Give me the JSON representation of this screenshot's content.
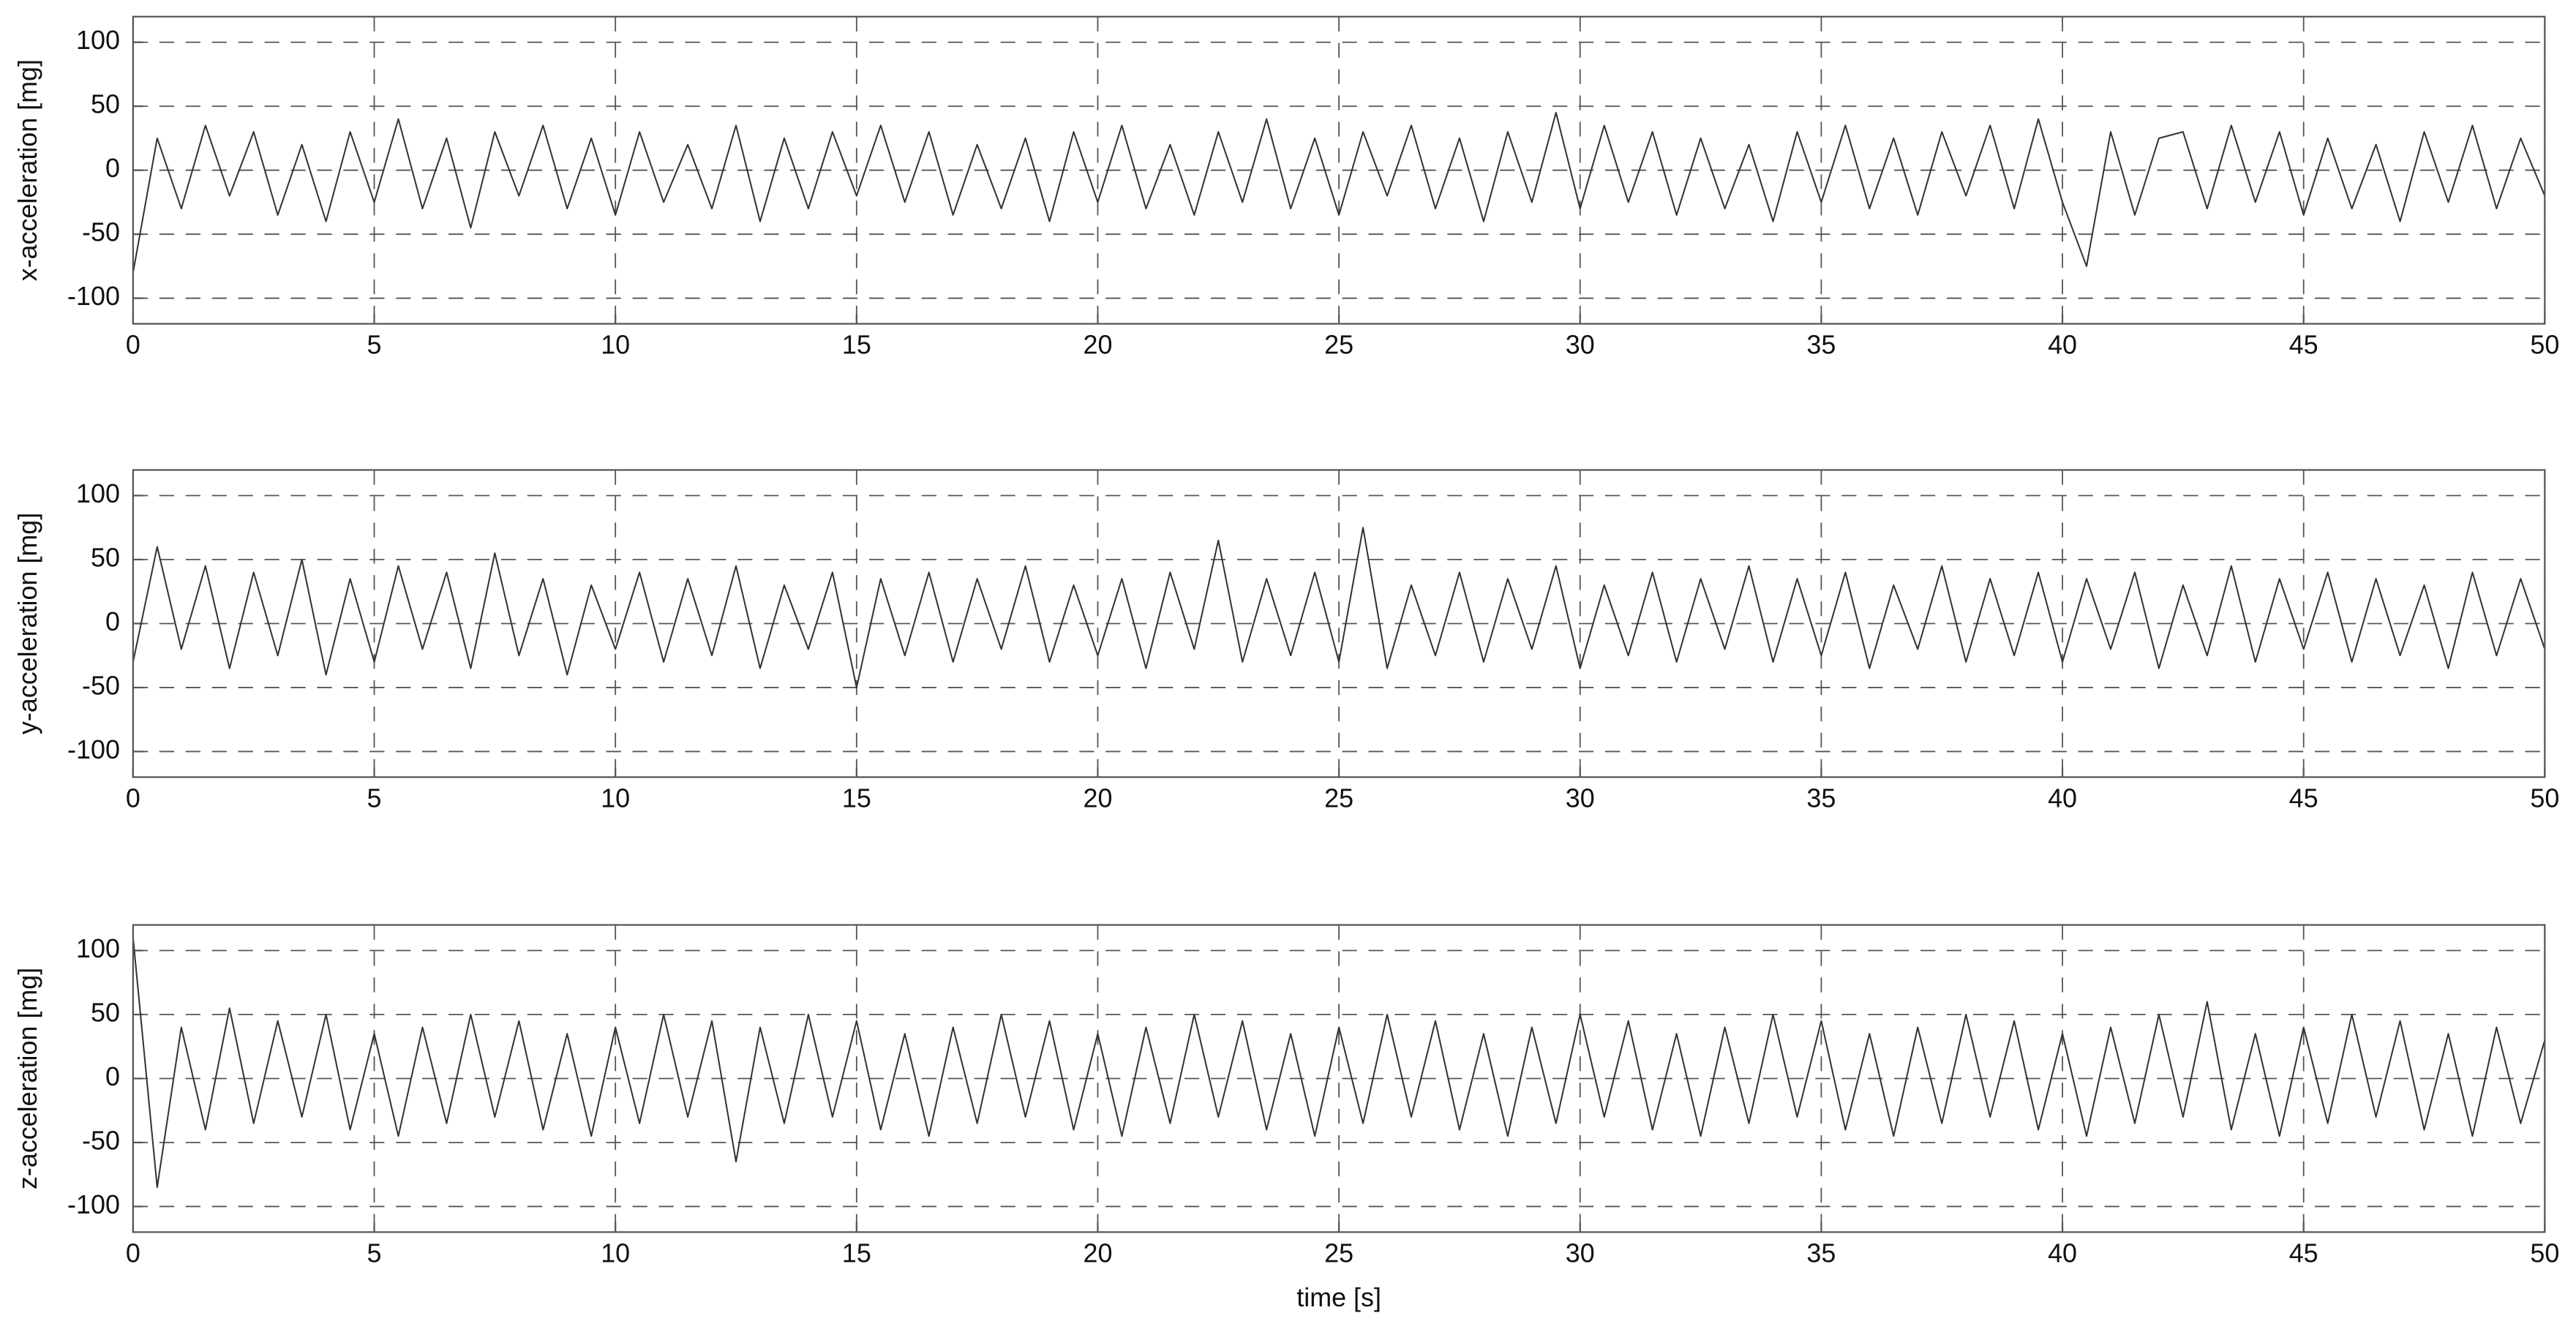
{
  "chart_data": [
    {
      "type": "line",
      "ylabel": "x-acceleration [mg]",
      "color": "#333333",
      "grid": true,
      "xlim": [
        0,
        50
      ],
      "xticks": [
        0,
        5,
        10,
        15,
        20,
        25,
        30,
        35,
        40,
        45,
        50
      ],
      "ylim": [
        -120,
        120
      ],
      "yticks": [
        -100,
        -50,
        0,
        50,
        100
      ],
      "x": [
        0,
        0.5,
        1,
        1.5,
        2,
        2.5,
        3,
        3.5,
        4,
        4.5,
        5,
        5.5,
        6,
        6.5,
        7,
        7.5,
        8,
        8.5,
        9,
        9.5,
        10,
        10.5,
        11,
        11.5,
        12,
        12.5,
        13,
        13.5,
        14,
        14.5,
        15,
        15.5,
        16,
        16.5,
        17,
        17.5,
        18,
        18.5,
        19,
        19.5,
        20,
        20.5,
        21,
        21.5,
        22,
        22.5,
        23,
        23.5,
        24,
        24.5,
        25,
        25.5,
        26,
        26.5,
        27,
        27.5,
        28,
        28.5,
        29,
        29.5,
        30,
        30.5,
        31,
        31.5,
        32,
        32.5,
        33,
        33.5,
        34,
        34.5,
        35,
        35.5,
        36,
        36.5,
        37,
        37.5,
        38,
        38.5,
        39,
        39.5,
        40,
        40.5,
        41,
        41.5,
        42,
        42.5,
        43,
        43.5,
        44,
        44.5,
        45,
        45.5,
        46,
        46.5,
        47,
        47.5,
        48,
        48.5,
        49,
        49.5,
        50
      ],
      "values": [
        -80,
        25,
        -30,
        35,
        -20,
        30,
        -35,
        20,
        -40,
        30,
        -25,
        40,
        -30,
        25,
        -45,
        30,
        -20,
        35,
        -30,
        25,
        -35,
        30,
        -25,
        20,
        -30,
        35,
        -40,
        25,
        -30,
        30,
        -20,
        35,
        -25,
        30,
        -35,
        20,
        -30,
        25,
        -40,
        30,
        -25,
        35,
        -30,
        20,
        -35,
        30,
        -25,
        40,
        -30,
        25,
        -35,
        30,
        -20,
        35,
        -30,
        25,
        -40,
        30,
        -25,
        45,
        -30,
        35,
        -25,
        30,
        -35,
        25,
        -30,
        20,
        -40,
        30,
        -25,
        35,
        -30,
        25,
        -35,
        30,
        -20,
        35,
        -30,
        40,
        -25,
        -75,
        30,
        -35,
        25,
        30,
        -30,
        35,
        -25,
        30,
        -35,
        25,
        -30,
        20,
        -40,
        30,
        -25,
        35,
        -30,
        25,
        -20
      ]
    },
    {
      "type": "line",
      "ylabel": "y-acceleration [mg]",
      "color": "#333333",
      "grid": true,
      "xlim": [
        0,
        50
      ],
      "xticks": [
        0,
        5,
        10,
        15,
        20,
        25,
        30,
        35,
        40,
        45,
        50
      ],
      "ylim": [
        -120,
        120
      ],
      "yticks": [
        -100,
        -50,
        0,
        50,
        100
      ],
      "x": [
        0,
        0.5,
        1,
        1.5,
        2,
        2.5,
        3,
        3.5,
        4,
        4.5,
        5,
        5.5,
        6,
        6.5,
        7,
        7.5,
        8,
        8.5,
        9,
        9.5,
        10,
        10.5,
        11,
        11.5,
        12,
        12.5,
        13,
        13.5,
        14,
        14.5,
        15,
        15.5,
        16,
        16.5,
        17,
        17.5,
        18,
        18.5,
        19,
        19.5,
        20,
        20.5,
        21,
        21.5,
        22,
        22.5,
        23,
        23.5,
        24,
        24.5,
        25,
        25.5,
        26,
        26.5,
        27,
        27.5,
        28,
        28.5,
        29,
        29.5,
        30,
        30.5,
        31,
        31.5,
        32,
        32.5,
        33,
        33.5,
        34,
        34.5,
        35,
        35.5,
        36,
        36.5,
        37,
        37.5,
        38,
        38.5,
        39,
        39.5,
        40,
        40.5,
        41,
        41.5,
        42,
        42.5,
        43,
        43.5,
        44,
        44.5,
        45,
        45.5,
        46,
        46.5,
        47,
        47.5,
        48,
        48.5,
        49,
        49.5,
        50
      ],
      "values": [
        -30,
        60,
        -20,
        45,
        -35,
        40,
        -25,
        50,
        -40,
        35,
        -30,
        45,
        -20,
        40,
        -35,
        55,
        -25,
        35,
        -40,
        30,
        -20,
        40,
        -30,
        35,
        -25,
        45,
        -35,
        30,
        -20,
        40,
        -50,
        35,
        -25,
        40,
        -30,
        35,
        -20,
        45,
        -30,
        30,
        -25,
        35,
        -35,
        40,
        -20,
        65,
        -30,
        35,
        -25,
        40,
        -30,
        75,
        -35,
        30,
        -25,
        40,
        -30,
        35,
        -20,
        45,
        -35,
        30,
        -25,
        40,
        -30,
        35,
        -20,
        45,
        -30,
        35,
        -25,
        40,
        -35,
        30,
        -20,
        45,
        -30,
        35,
        -25,
        40,
        -30,
        35,
        -20,
        40,
        -35,
        30,
        -25,
        45,
        -30,
        35,
        -20,
        40,
        -30,
        35,
        -25,
        30,
        -35,
        40,
        -25,
        35,
        -20
      ]
    },
    {
      "type": "line",
      "ylabel": "z-acceleration [mg]",
      "xlabel": "time [s]",
      "color": "#333333",
      "grid": true,
      "xlim": [
        0,
        50
      ],
      "xticks": [
        0,
        5,
        10,
        15,
        20,
        25,
        30,
        35,
        40,
        45,
        50
      ],
      "ylim": [
        -120,
        120
      ],
      "yticks": [
        -100,
        -50,
        0,
        50,
        100
      ],
      "x": [
        0,
        0.5,
        1,
        1.5,
        2,
        2.5,
        3,
        3.5,
        4,
        4.5,
        5,
        5.5,
        6,
        6.5,
        7,
        7.5,
        8,
        8.5,
        9,
        9.5,
        10,
        10.5,
        11,
        11.5,
        12,
        12.5,
        13,
        13.5,
        14,
        14.5,
        15,
        15.5,
        16,
        16.5,
        17,
        17.5,
        18,
        18.5,
        19,
        19.5,
        20,
        20.5,
        21,
        21.5,
        22,
        22.5,
        23,
        23.5,
        24,
        24.5,
        25,
        25.5,
        26,
        26.5,
        27,
        27.5,
        28,
        28.5,
        29,
        29.5,
        30,
        30.5,
        31,
        31.5,
        32,
        32.5,
        33,
        33.5,
        34,
        34.5,
        35,
        35.5,
        36,
        36.5,
        37,
        37.5,
        38,
        38.5,
        39,
        39.5,
        40,
        40.5,
        41,
        41.5,
        42,
        42.5,
        43,
        43.5,
        44,
        44.5,
        45,
        45.5,
        46,
        46.5,
        47,
        47.5,
        48,
        48.5,
        49,
        49.5,
        50
      ],
      "values": [
        110,
        -85,
        40,
        -40,
        55,
        -35,
        45,
        -30,
        50,
        -40,
        35,
        -45,
        40,
        -35,
        50,
        -30,
        45,
        -40,
        35,
        -45,
        40,
        -35,
        50,
        -30,
        45,
        -65,
        40,
        -35,
        50,
        -30,
        45,
        -40,
        35,
        -45,
        40,
        -35,
        50,
        -30,
        45,
        -40,
        35,
        -45,
        40,
        -35,
        50,
        -30,
        45,
        -40,
        35,
        -45,
        40,
        -35,
        50,
        -30,
        45,
        -40,
        35,
        -45,
        40,
        -35,
        50,
        -30,
        45,
        -40,
        35,
        -45,
        40,
        -35,
        50,
        -30,
        45,
        -40,
        35,
        -45,
        40,
        -35,
        50,
        -30,
        45,
        -40,
        35,
        -45,
        40,
        -35,
        50,
        -30,
        60,
        -40,
        35,
        -45,
        40,
        -35,
        50,
        -30,
        45,
        -40,
        35,
        -45,
        40,
        -35,
        30
      ]
    }
  ]
}
